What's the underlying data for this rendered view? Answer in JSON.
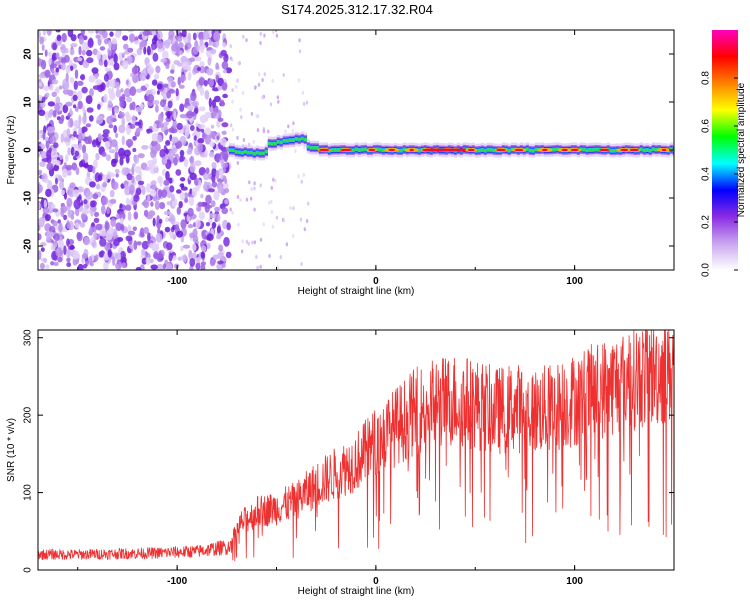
{
  "title": "S174.2025.312.17.32.R04",
  "chart_data": [
    {
      "type": "heatmap",
      "xlabel": "Height of straight line (km)",
      "ylabel": "Frequency (Hz)",
      "xlim": [
        -170,
        150
      ],
      "ylim": [
        -25,
        25
      ],
      "x_ticks": [
        "-100",
        "0",
        "100"
      ],
      "y_ticks": [
        "-20",
        "-10",
        "0",
        "10",
        "20"
      ],
      "colorbar": {
        "label": "Normalized spectral amplitude",
        "range": [
          0,
          1
        ],
        "ticks": [
          "0.0",
          "0.2",
          "0.4",
          "0.6",
          "0.8"
        ],
        "colors": [
          "#ffffff",
          "#c9a6f0",
          "#8a2be2",
          "#0000ff",
          "#00ffff",
          "#00ff00",
          "#ffff00",
          "#ff8000",
          "#ff0000",
          "#ff00c0"
        ]
      },
      "regions": [
        {
          "name": "noise",
          "x_range": [
            -170,
            -74
          ],
          "description_amplitude": 0.25
        },
        {
          "name": "signal_line",
          "x_range": [
            -74,
            150
          ],
          "center_hz": 0
        }
      ]
    },
    {
      "type": "line",
      "xlabel": "Height of straight line (km)",
      "ylabel": "SNR (10 * v/v)",
      "xlim": [
        -170,
        150
      ],
      "ylim": [
        0,
        310
      ],
      "x_ticks": [
        "-100",
        "0",
        "100"
      ],
      "y_ticks": [
        "0",
        "100",
        "200",
        "300"
      ],
      "line_color": "#ee3030",
      "series": [
        {
          "name": "SNR",
          "x": [
            -170,
            -150,
            -130,
            -110,
            -90,
            -74,
            -68,
            -60,
            -50,
            -40,
            -30,
            -20,
            -10,
            0,
            10,
            20,
            30,
            40,
            50,
            60,
            70,
            80,
            90,
            100,
            110,
            120,
            130,
            140,
            150
          ],
          "y": [
            20,
            20,
            21,
            22,
            24,
            30,
            60,
            75,
            80,
            90,
            110,
            125,
            140,
            165,
            185,
            205,
            215,
            220,
            215,
            205,
            210,
            205,
            210,
            220,
            230,
            240,
            250,
            255,
            260
          ]
        }
      ]
    }
  ]
}
